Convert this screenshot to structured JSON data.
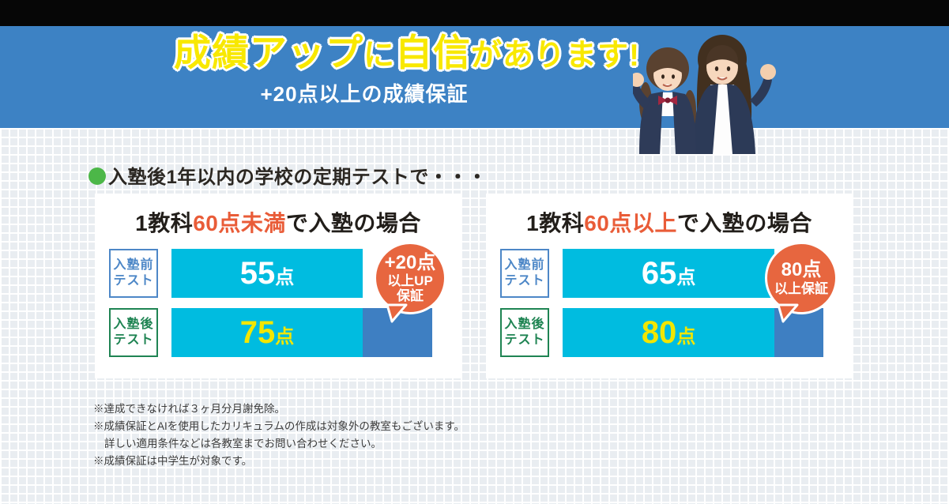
{
  "banner": {
    "title_parts": [
      {
        "text": "成績アップ"
      },
      {
        "text": "に"
      },
      {
        "text": "自信"
      },
      {
        "text": "があります!"
      }
    ],
    "subtitle": "+20点以上の成績保証",
    "colors": {
      "topbar": "#060606",
      "background": "#3d82c4",
      "title_yellow": "#f8e800",
      "subtitle_white": "#ffffff"
    }
  },
  "section": {
    "heading": "入塾後1年以内の学校の定期テストで・・・",
    "bullet_color": "#4cb748"
  },
  "cards": [
    {
      "title": {
        "prefix": "1教科",
        "accent": "60点未満",
        "suffix": "で入塾の場合"
      },
      "rows": [
        {
          "label_line1": "入塾前",
          "label_line2": "テスト",
          "score": "55",
          "unit": "点"
        },
        {
          "label_line1": "入塾後",
          "label_line2": "テスト",
          "score": "75",
          "unit": "点"
        }
      ],
      "badge": {
        "lines": [
          "+20点",
          "以上UP",
          "保証"
        ]
      }
    },
    {
      "title": {
        "prefix": "1教科",
        "accent": "60点以上",
        "suffix": "で入塾の場合"
      },
      "rows": [
        {
          "label_line1": "入塾前",
          "label_line2": "テスト",
          "score": "65",
          "unit": "点"
        },
        {
          "label_line1": "入塾後",
          "label_line2": "テスト",
          "score": "80",
          "unit": "点"
        }
      ],
      "badge": {
        "lines": [
          "80点",
          "以上保証"
        ]
      }
    }
  ],
  "notes": [
    {
      "text": "※達成できなければ３ヶ月分月謝免除。"
    },
    {
      "text": "※成績保証とAIを使用したカリキュラムの作成は対象外の教室もございます。"
    },
    {
      "text": "詳しい適用条件などは各教室までお問い合わせください。",
      "indent": true
    },
    {
      "text": "※成績保証は中学生が対象です。"
    }
  ],
  "colors": {
    "bar_cyan": "#00bce0",
    "bar_blue": "#3e7fc2",
    "badge_orange": "#e7663f",
    "accent_orange": "#e95c38",
    "label_blue": "#4d87c7",
    "label_green": "#1f8453",
    "score_yellow": "#f2e600",
    "grid_bg": "#e9edf1"
  },
  "chart_data": [
    {
      "type": "bar",
      "title": "1教科60点未満で入塾の場合",
      "categories": [
        "入塾前テスト",
        "入塾後テスト"
      ],
      "values": [
        55,
        75
      ],
      "unit": "点",
      "annotation": "+20点以上UP保証",
      "orientation": "horizontal",
      "xlim": [
        0,
        75
      ]
    },
    {
      "type": "bar",
      "title": "1教科60点以上で入塾の場合",
      "categories": [
        "入塾前テスト",
        "入塾後テスト"
      ],
      "values": [
        65,
        80
      ],
      "unit": "点",
      "annotation": "80点以上保証",
      "orientation": "horizontal",
      "xlim": [
        0,
        80
      ]
    }
  ]
}
